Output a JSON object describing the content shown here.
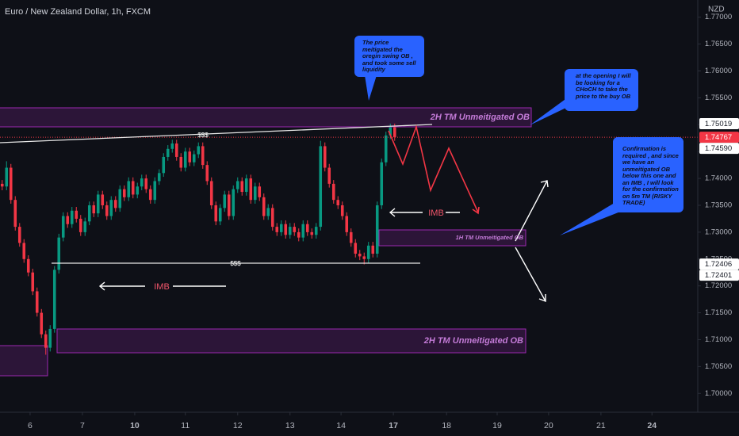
{
  "chart_data": {
    "type": "candlestick",
    "title": "Euro / New Zealand Dollar, 1h, FXCM",
    "currency": "NZD",
    "up_color": "#089981",
    "down_color": "#f23645",
    "grid": false,
    "x": [
      0,
      1,
      2,
      3,
      4,
      5,
      6,
      7,
      8,
      9,
      10,
      11,
      12,
      13,
      14,
      15,
      16,
      17,
      18,
      19,
      20,
      21,
      22,
      23,
      24,
      25,
      26,
      27,
      28,
      29,
      30,
      31,
      32,
      33,
      34,
      35,
      36,
      37,
      38,
      39,
      40,
      41,
      42,
      43,
      44,
      45,
      46,
      47,
      48,
      49,
      50,
      51,
      52,
      53,
      54,
      55,
      56,
      57,
      58,
      59,
      60,
      61,
      62,
      63,
      64,
      65,
      66,
      67,
      68,
      69,
      70,
      71,
      72,
      73,
      74,
      75,
      76,
      77,
      78,
      79,
      80,
      81,
      82,
      83,
      84,
      85,
      86,
      87,
      88,
      89,
      90
    ],
    "open": [
      1.739,
      1.7385,
      1.742,
      1.736,
      1.731,
      1.728,
      1.725,
      1.7225,
      1.719,
      1.715,
      1.711,
      1.7085,
      1.712,
      1.723,
      1.729,
      1.733,
      1.7315,
      1.734,
      1.7325,
      1.73,
      1.732,
      1.735,
      1.7335,
      1.737,
      1.735,
      1.733,
      1.736,
      1.7345,
      1.738,
      1.7365,
      1.7395,
      1.737,
      1.7385,
      1.74,
      1.738,
      1.736,
      1.7395,
      1.741,
      1.744,
      1.7455,
      1.7465,
      1.744,
      1.742,
      1.745,
      1.743,
      1.7445,
      1.746,
      1.7425,
      1.7395,
      1.735,
      1.732,
      1.7345,
      1.737,
      1.733,
      1.738,
      1.7395,
      1.7375,
      1.74,
      1.736,
      1.7385,
      1.7365,
      1.733,
      1.7345,
      1.731,
      1.73,
      1.7315,
      1.7295,
      1.731,
      1.73,
      1.729,
      1.7315,
      1.73,
      1.7295,
      1.731,
      1.746,
      1.742,
      1.739,
      1.736,
      1.735,
      1.733,
      1.73,
      1.728,
      1.726,
      1.7255,
      1.725,
      1.7275,
      1.726,
      1.735,
      1.743,
      1.748,
      1.7495
    ],
    "high": [
      1.7397,
      1.7432,
      1.7427,
      1.7367,
      1.7317,
      1.7287,
      1.7257,
      1.7232,
      1.7197,
      1.7157,
      1.7117,
      1.7127,
      1.7237,
      1.7297,
      1.7337,
      1.7337,
      1.7347,
      1.7347,
      1.7332,
      1.7327,
      1.7357,
      1.7357,
      1.7377,
      1.7377,
      1.7357,
      1.7367,
      1.7367,
      1.7387,
      1.7387,
      1.7402,
      1.7402,
      1.7392,
      1.7407,
      1.7407,
      1.7387,
      1.7402,
      1.7417,
      1.7447,
      1.7462,
      1.7472,
      1.7472,
      1.7447,
      1.7457,
      1.7457,
      1.7452,
      1.7467,
      1.7467,
      1.7432,
      1.7402,
      1.7357,
      1.7352,
      1.7377,
      1.7377,
      1.7387,
      1.7402,
      1.7402,
      1.7407,
      1.7407,
      1.7392,
      1.7392,
      1.7372,
      1.7352,
      1.7352,
      1.7317,
      1.7322,
      1.7322,
      1.7317,
      1.7317,
      1.7307,
      1.7322,
      1.7322,
      1.7307,
      1.7317,
      1.747,
      1.7467,
      1.7427,
      1.7397,
      1.7367,
      1.7357,
      1.7337,
      1.7307,
      1.7287,
      1.7267,
      1.7262,
      1.7282,
      1.7282,
      1.7357,
      1.7437,
      1.7487,
      1.7502,
      1.7502
    ],
    "low": [
      1.7378,
      1.7378,
      1.7353,
      1.7303,
      1.7273,
      1.7243,
      1.7218,
      1.7183,
      1.7143,
      1.7103,
      1.7072,
      1.7078,
      1.7113,
      1.7223,
      1.7283,
      1.7308,
      1.7308,
      1.7318,
      1.7293,
      1.7293,
      1.7313,
      1.7328,
      1.7328,
      1.7343,
      1.7323,
      1.7323,
      1.7338,
      1.7338,
      1.7358,
      1.7358,
      1.7363,
      1.7363,
      1.7378,
      1.7373,
      1.7353,
      1.7353,
      1.7388,
      1.7403,
      1.7433,
      1.7448,
      1.7433,
      1.7413,
      1.7413,
      1.7423,
      1.7423,
      1.7438,
      1.7418,
      1.7388,
      1.7343,
      1.7313,
      1.7313,
      1.7338,
      1.7323,
      1.7323,
      1.7373,
      1.7368,
      1.7368,
      1.7353,
      1.7353,
      1.7358,
      1.7323,
      1.7323,
      1.7303,
      1.7293,
      1.7293,
      1.7288,
      1.7288,
      1.7293,
      1.7283,
      1.7283,
      1.7293,
      1.7288,
      1.7288,
      1.7303,
      1.7413,
      1.7383,
      1.7353,
      1.7343,
      1.7323,
      1.7293,
      1.7273,
      1.7253,
      1.7248,
      1.724,
      1.7243,
      1.7253,
      1.7253,
      1.7343,
      1.7423,
      1.7473,
      1.747
    ],
    "close": [
      1.7385,
      1.742,
      1.736,
      1.731,
      1.728,
      1.725,
      1.7225,
      1.719,
      1.715,
      1.711,
      1.7085,
      1.712,
      1.723,
      1.729,
      1.733,
      1.7315,
      1.734,
      1.7325,
      1.73,
      1.732,
      1.735,
      1.7335,
      1.737,
      1.735,
      1.733,
      1.736,
      1.7345,
      1.738,
      1.7365,
      1.7395,
      1.737,
      1.7385,
      1.74,
      1.738,
      1.736,
      1.7395,
      1.741,
      1.744,
      1.7455,
      1.7465,
      1.744,
      1.742,
      1.745,
      1.743,
      1.7445,
      1.746,
      1.7425,
      1.7395,
      1.735,
      1.732,
      1.7345,
      1.737,
      1.733,
      1.738,
      1.7395,
      1.7375,
      1.74,
      1.736,
      1.7385,
      1.7365,
      1.733,
      1.7345,
      1.731,
      1.73,
      1.7315,
      1.7295,
      1.731,
      1.73,
      1.729,
      1.7315,
      1.73,
      1.7295,
      1.731,
      1.746,
      1.742,
      1.739,
      1.736,
      1.735,
      1.733,
      1.73,
      1.728,
      1.726,
      1.7255,
      1.725,
      1.7275,
      1.726,
      1.735,
      1.743,
      1.748,
      1.7495,
      1.7477
    ],
    "xlim": [
      -0.5,
      159.5
    ],
    "ylim": [
      1.6965,
      1.7732
    ],
    "xticks": [
      {
        "value": 6.4,
        "label": "6"
      },
      {
        "value": 18.4,
        "label": "7"
      },
      {
        "value": 30.4,
        "label": "10",
        "bold": true
      },
      {
        "value": 42,
        "label": "11"
      },
      {
        "value": 54,
        "label": "12"
      },
      {
        "value": 66,
        "label": "13"
      },
      {
        "value": 77.7,
        "label": "14"
      },
      {
        "value": 89.7,
        "label": "17",
        "bold": true
      },
      {
        "value": 101.9,
        "label": "18"
      },
      {
        "value": 113.5,
        "label": "19"
      },
      {
        "value": 125.3,
        "label": "20"
      },
      {
        "value": 137.3,
        "label": "21"
      },
      {
        "value": 149,
        "label": "24",
        "bold": true
      }
    ],
    "yticks": [
      {
        "value": 1.77,
        "label": "1.77000"
      },
      {
        "value": 1.765,
        "label": "1.76500"
      },
      {
        "value": 1.76,
        "label": "1.76000"
      },
      {
        "value": 1.755,
        "label": "1.75500"
      },
      {
        "value": 1.75,
        "label": "1.75000"
      },
      {
        "value": 1.745,
        "label": "1.74500"
      },
      {
        "value": 1.74,
        "label": "1.74000"
      },
      {
        "value": 1.735,
        "label": "1.73500"
      },
      {
        "value": 1.73,
        "label": "1.73000"
      },
      {
        "value": 1.725,
        "label": "1.72500"
      },
      {
        "value": 1.72,
        "label": "1.72000"
      },
      {
        "value": 1.715,
        "label": "1.71500"
      },
      {
        "value": 1.71,
        "label": "1.71000"
      },
      {
        "value": 1.705,
        "label": "1.70500"
      },
      {
        "value": 1.7,
        "label": "1.70000"
      }
    ],
    "price_labels": [
      {
        "value": 1.75019,
        "label": "1.75019",
        "color": "#ffffff"
      },
      {
        "value": 1.74767,
        "label": "1.74767",
        "color": "#f23645"
      },
      {
        "value": 1.7459,
        "label": "1.74590",
        "color": "#ffffff"
      },
      {
        "value": 1.72406,
        "label": "1.72406",
        "color": "#ffffff"
      },
      {
        "value": 1.72401,
        "label": "1.72401",
        "color": "#ffffff"
      }
    ],
    "labels": {
      "zone_2h": "2H TM Unmeitigated OB",
      "zone_1h": "1H TM Unmeitigated OB",
      "liquidity": "$$$",
      "imb": "IMB"
    },
    "callouts": [
      "The price meitigated the oregin swing OB , and took some sell liquidity",
      "at the opening I will be looking for a CHoCH to take the price to the buy OB",
      "Confirmation is required , and since we have an unmeitigated OB below this one and an IMB , I will look for the confirmation on 5m TM (RISKY TRADE)"
    ]
  }
}
